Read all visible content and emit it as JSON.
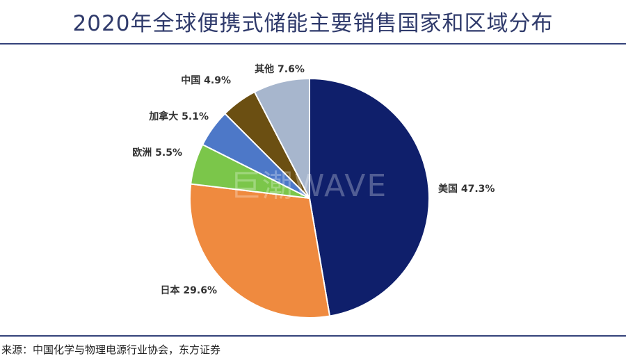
{
  "title": "2020年全球便携式储能主要销售国家和区域分布",
  "source": "来源：中国化学与物理电源行业协会，东方证券",
  "watermark": "巨潮WAVE",
  "chart_data": {
    "type": "pie",
    "title": "2020年全球便携式储能主要销售国家和区域分布",
    "slices": [
      {
        "label": "美国 47.3%",
        "name": "美国",
        "value": 47.3,
        "color": "#0f1f6b"
      },
      {
        "label": "日本 29.6%",
        "name": "日本",
        "value": 29.6,
        "color": "#ef8a3f"
      },
      {
        "label": "欧洲 5.5%",
        "name": "欧洲",
        "value": 5.5,
        "color": "#7bc64a"
      },
      {
        "label": "加拿大 5.1%",
        "name": "加拿大",
        "value": 5.1,
        "color": "#4d78c8"
      },
      {
        "label": "中国 4.9%",
        "name": "中国",
        "value": 4.9,
        "color": "#6b4f12"
      },
      {
        "label": "其他 7.6%",
        "name": "其他",
        "value": 7.6,
        "color": "#a7b6cd"
      }
    ],
    "start_angle": "12 o'clock",
    "direction": "clockwise",
    "legend": "none"
  }
}
